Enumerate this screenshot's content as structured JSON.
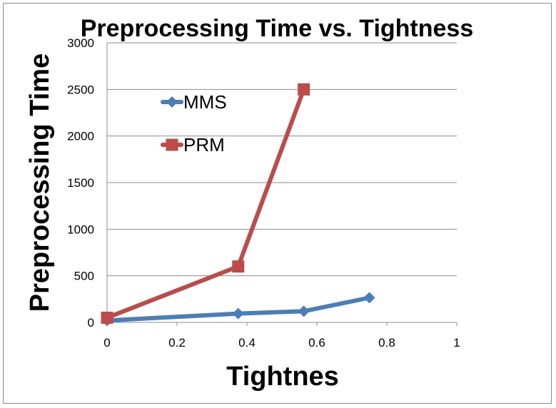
{
  "chart_data": {
    "type": "scatter",
    "title": "Preprocessing Time vs. Tightness",
    "xlabel": "Tightnes",
    "ylabel": "Preprocessing Time",
    "xlim": [
      0,
      1
    ],
    "ylim": [
      0,
      3000
    ],
    "xticks": [
      "0",
      "0.2",
      "0.4",
      "0.6",
      "0.8",
      "1"
    ],
    "yticks": [
      "0",
      "500",
      "1000",
      "1500",
      "2000",
      "2500",
      "3000"
    ],
    "grid": "horizontal",
    "legend_position": "inside-top-left",
    "series": [
      {
        "name": "MMS",
        "color": "#4a7ebb",
        "marker": "diamond",
        "points": [
          [
            0,
            20
          ],
          [
            0.375,
            95
          ],
          [
            0.5625,
            120
          ],
          [
            0.75,
            265
          ]
        ]
      },
      {
        "name": "PRM",
        "color": "#be4b48",
        "marker": "square",
        "points": [
          [
            0,
            50
          ],
          [
            0.375,
            600
          ],
          [
            0.5625,
            2500
          ]
        ]
      }
    ]
  }
}
